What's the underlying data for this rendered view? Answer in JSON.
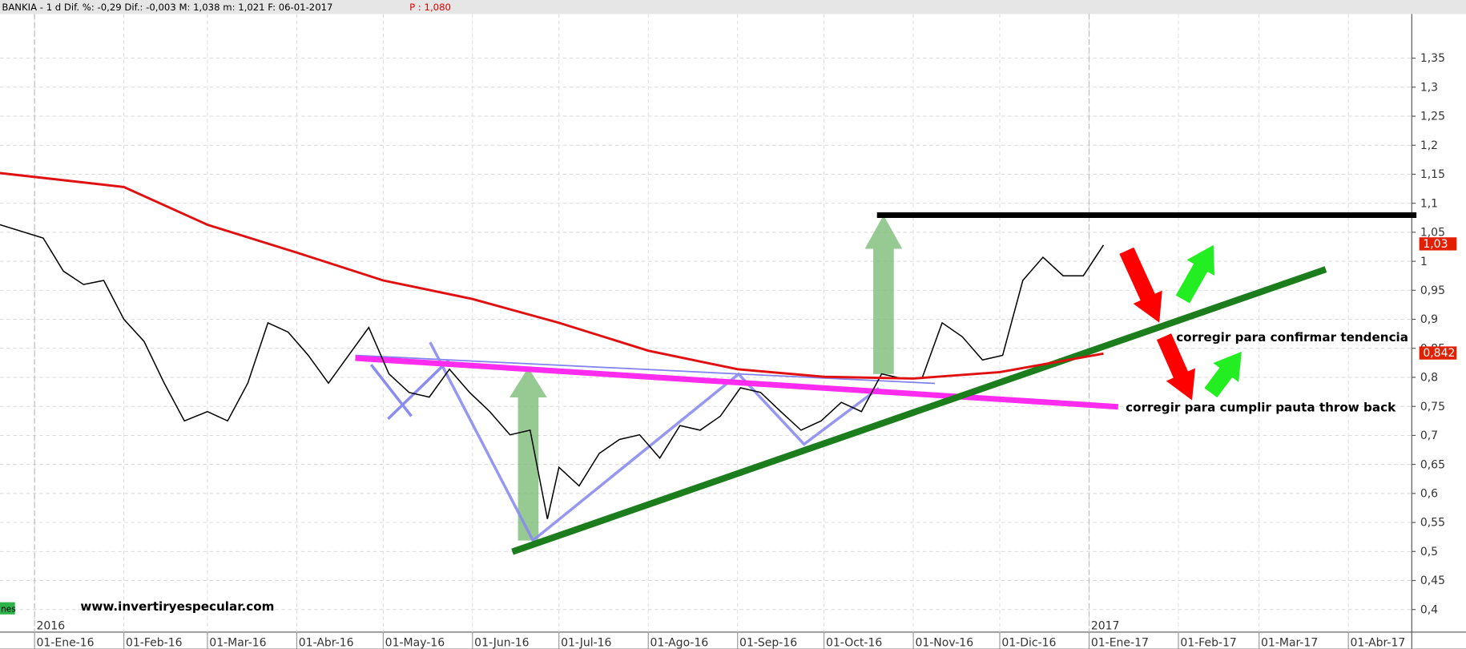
{
  "chart_data": {
    "type": "line",
    "title": "BANKIA -   1 d Dif. %: -0,29 Dif.: -0,003 M: 1,038 m: 1,021 F: 06-01-2017",
    "subtitle": "P : 1,080",
    "xlim": [
      "2015-12-20",
      "2017-04-23"
    ],
    "xticks": [
      {
        "value": "2016-01-01",
        "label": "01-Ene-16"
      },
      {
        "value": "2016-02-01",
        "label": "01-Feb-16"
      },
      {
        "value": "2016-03-01",
        "label": "01-Mar-16"
      },
      {
        "value": "2016-04-01",
        "label": "01-Abr-16"
      },
      {
        "value": "2016-05-01",
        "label": "01-May-16"
      },
      {
        "value": "2016-06-01",
        "label": "01-Jun-16"
      },
      {
        "value": "2016-07-01",
        "label": "01-Jul-16"
      },
      {
        "value": "2016-08-01",
        "label": "01-Ago-16"
      },
      {
        "value": "2016-09-01",
        "label": "01-Sep-16"
      },
      {
        "value": "2016-10-01",
        "label": "01-Oct-16"
      },
      {
        "value": "2016-11-01",
        "label": "01-Nov-16"
      },
      {
        "value": "2016-12-01",
        "label": "01-Dic-16"
      },
      {
        "value": "2017-01-01",
        "label": "01-Ene-17"
      },
      {
        "value": "2017-02-01",
        "label": "01-Feb-17"
      },
      {
        "value": "2017-03-01",
        "label": "01-Mar-17"
      },
      {
        "value": "2017-04-01",
        "label": "01-Abr-17"
      }
    ],
    "year_labels": [
      {
        "value": "2016-01-01",
        "label": "2016"
      },
      {
        "value": "2017-01-01",
        "label": "2017"
      }
    ],
    "ylim": [
      0.361,
      1.426
    ],
    "yticks": [
      {
        "value": 0.4,
        "label": "0,4"
      },
      {
        "value": 0.45,
        "label": "0,45"
      },
      {
        "value": 0.5,
        "label": "0,5"
      },
      {
        "value": 0.55,
        "label": "0,55"
      },
      {
        "value": 0.6,
        "label": "0,6"
      },
      {
        "value": 0.65,
        "label": "0,65"
      },
      {
        "value": 0.7,
        "label": "0,7"
      },
      {
        "value": 0.75,
        "label": "0,75"
      },
      {
        "value": 0.8,
        "label": "0,8"
      },
      {
        "value": 0.85,
        "label": "0,85"
      },
      {
        "value": 0.9,
        "label": "0,9"
      },
      {
        "value": 0.95,
        "label": "0,95"
      },
      {
        "value": 1,
        "label": "1"
      },
      {
        "value": 1.05,
        "label": "1,05"
      },
      {
        "value": 1.1,
        "label": "1,1"
      },
      {
        "value": 1.15,
        "label": "1,15"
      },
      {
        "value": 1.2,
        "label": "1,2"
      },
      {
        "value": 1.25,
        "label": "1,25"
      },
      {
        "value": 1.3,
        "label": "1,3"
      },
      {
        "value": 1.35,
        "label": "1,35"
      }
    ],
    "grid": true,
    "series": [
      {
        "color": "#000000",
        "x": [
          "2015-12-20",
          "2016-01-04",
          "2016-01-11",
          "2016-01-18",
          "2016-01-25",
          "2016-02-01",
          "2016-02-08",
          "2016-02-15",
          "2016-02-22",
          "2016-03-01",
          "2016-03-08",
          "2016-03-15",
          "2016-03-22",
          "2016-03-29",
          "2016-04-05",
          "2016-04-12",
          "2016-04-19",
          "2016-04-26",
          "2016-05-03",
          "2016-05-10",
          "2016-05-17",
          "2016-05-24",
          "2016-05-31",
          "2016-06-07",
          "2016-06-14",
          "2016-06-21",
          "2016-06-27",
          "2016-07-01",
          "2016-07-08",
          "2016-07-15",
          "2016-07-22",
          "2016-07-29",
          "2016-08-05",
          "2016-08-12",
          "2016-08-19",
          "2016-08-26",
          "2016-09-02",
          "2016-09-09",
          "2016-09-16",
          "2016-09-23",
          "2016-09-30",
          "2016-10-07",
          "2016-10-14",
          "2016-10-21",
          "2016-10-28",
          "2016-11-04",
          "2016-11-11",
          "2016-11-18",
          "2016-11-25",
          "2016-12-02",
          "2016-12-09",
          "2016-12-16",
          "2016-12-23",
          "2016-12-30",
          "2017-01-06"
        ],
        "values": [
          1.063,
          1.04,
          0.983,
          0.96,
          0.967,
          0.9,
          0.862,
          0.79,
          0.725,
          0.741,
          0.725,
          0.79,
          0.894,
          0.878,
          0.838,
          0.79,
          0.838,
          0.886,
          0.806,
          0.774,
          0.766,
          0.814,
          0.774,
          0.741,
          0.701,
          0.709,
          0.556,
          0.645,
          0.613,
          0.669,
          0.693,
          0.701,
          0.661,
          0.717,
          0.709,
          0.733,
          0.782,
          0.774,
          0.741,
          0.709,
          0.725,
          0.757,
          0.741,
          0.806,
          0.798,
          0.798,
          0.894,
          0.87,
          0.83,
          0.838,
          0.967,
          1.007,
          0.975,
          0.975,
          1.028
        ]
      },
      {
        "color": "#e01010",
        "x": [
          "2015-12-20",
          "2016-02-01",
          "2016-03-01",
          "2016-04-01",
          "2016-05-01",
          "2016-06-01",
          "2016-07-01",
          "2016-08-01",
          "2016-09-01",
          "2016-10-01",
          "2016-11-01",
          "2016-12-01",
          "2017-01-06"
        ],
        "values": [
          1.152,
          1.128,
          1.063,
          1.015,
          0.967,
          0.935,
          0.894,
          0.846,
          0.814,
          0.801,
          0.798,
          0.809,
          0.841
        ]
      }
    ],
    "last_labels": [
      {
        "value": 1.03,
        "label": "1,03"
      },
      {
        "value": 0.842,
        "label": "0,842"
      }
    ],
    "annotations": [
      "corregir para confirmar tendencia",
      "corregir para cumplir pauta throw back",
      "www.invertiryespecular.com"
    ],
    "legend_fragment": "nes"
  }
}
